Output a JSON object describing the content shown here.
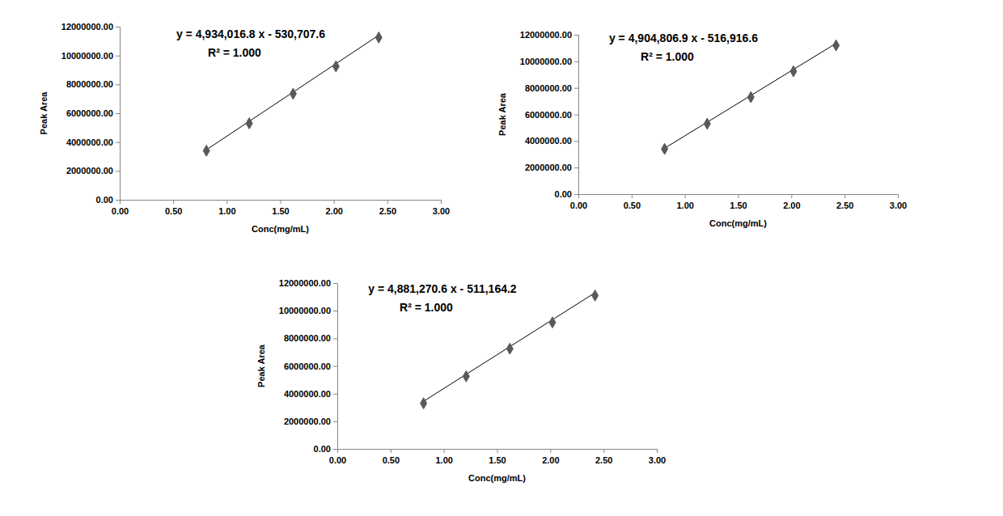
{
  "chart_data": [
    {
      "type": "scatter",
      "x_label": "Conc(mg/mL)",
      "y_label": "Peak Area",
      "equation": "y = 4,934,016.8 x - 530,707.6",
      "r_squared_label": "R² = 1.000",
      "x": [
        0.81,
        1.21,
        1.62,
        2.02,
        2.42
      ],
      "values": [
        3400000,
        5300000,
        7350000,
        9250000,
        11250000
      ],
      "trendline": {
        "slope": 4934016.8,
        "intercept": -530707.6
      },
      "color": "#595959",
      "marker": "diamond",
      "xlim": [
        0,
        3
      ],
      "xticks": [
        {
          "value": 0,
          "label": "0.00"
        },
        {
          "value": 0.5,
          "label": "0.50"
        },
        {
          "value": 1,
          "label": "1.00"
        },
        {
          "value": 1.5,
          "label": "1.50"
        },
        {
          "value": 2,
          "label": "2.00"
        },
        {
          "value": 2.5,
          "label": "2.50"
        },
        {
          "value": 3,
          "label": "3.00"
        }
      ],
      "ylim": [
        0,
        12000000
      ],
      "yticks": [
        {
          "value": 0,
          "label": "0.00"
        },
        {
          "value": 2000000,
          "label": "2000000.00"
        },
        {
          "value": 4000000,
          "label": "4000000.00"
        },
        {
          "value": 6000000,
          "label": "6000000.00"
        },
        {
          "value": 8000000,
          "label": "8000000.00"
        },
        {
          "value": 10000000,
          "label": "10000000.00"
        },
        {
          "value": 12000000,
          "label": "12000000.00"
        }
      ],
      "grid": false
    },
    {
      "type": "scatter",
      "x_label": "Conc(mg/mL)",
      "y_label": "Peak Area",
      "equation": "y = 4,904,806.9 x - 516,916.6",
      "r_squared_label": "R² = 1.000",
      "x": [
        0.81,
        1.21,
        1.62,
        2.02,
        2.42
      ],
      "values": [
        3400000,
        5300000,
        7300000,
        9250000,
        11200000
      ],
      "trendline": {
        "slope": 4904806.9,
        "intercept": -516916.6
      },
      "color": "#595959",
      "marker": "diamond",
      "xlim": [
        0,
        3
      ],
      "xticks": [
        {
          "value": 0,
          "label": "0.00"
        },
        {
          "value": 0.5,
          "label": "0.50"
        },
        {
          "value": 1,
          "label": "1.00"
        },
        {
          "value": 1.5,
          "label": "1.50"
        },
        {
          "value": 2,
          "label": "2.00"
        },
        {
          "value": 2.5,
          "label": "2.50"
        },
        {
          "value": 3,
          "label": "3.00"
        }
      ],
      "ylim": [
        0,
        12000000
      ],
      "yticks": [
        {
          "value": 0,
          "label": "0.00"
        },
        {
          "value": 2000000,
          "label": "2000000.00"
        },
        {
          "value": 4000000,
          "label": "4000000.00"
        },
        {
          "value": 6000000,
          "label": "6000000.00"
        },
        {
          "value": 8000000,
          "label": "8000000.00"
        },
        {
          "value": 10000000,
          "label": "10000000.00"
        },
        {
          "value": 12000000,
          "label": "12000000.00"
        }
      ],
      "grid": false
    },
    {
      "type": "scatter",
      "x_label": "Conc(mg/mL)",
      "y_label": "Peak Area",
      "equation": "y = 4,881,270.6 x - 511,164.2",
      "r_squared_label": "R² = 1.000",
      "x": [
        0.81,
        1.21,
        1.62,
        2.02,
        2.42
      ],
      "values": [
        3300000,
        5250000,
        7250000,
        9150000,
        11100000
      ],
      "trendline": {
        "slope": 4881270.6,
        "intercept": -511164.2
      },
      "color": "#595959",
      "marker": "diamond",
      "xlim": [
        0,
        3
      ],
      "xticks": [
        {
          "value": 0,
          "label": "0.00"
        },
        {
          "value": 0.5,
          "label": "0.50"
        },
        {
          "value": 1,
          "label": "1.00"
        },
        {
          "value": 1.5,
          "label": "1.50"
        },
        {
          "value": 2,
          "label": "2.00"
        },
        {
          "value": 2.5,
          "label": "2.50"
        },
        {
          "value": 3,
          "label": "3.00"
        }
      ],
      "ylim": [
        0,
        12000000
      ],
      "yticks": [
        {
          "value": 0,
          "label": "0.00"
        },
        {
          "value": 2000000,
          "label": "2000000.00"
        },
        {
          "value": 4000000,
          "label": "4000000.00"
        },
        {
          "value": 6000000,
          "label": "6000000.00"
        },
        {
          "value": 8000000,
          "label": "8000000.00"
        },
        {
          "value": 10000000,
          "label": "10000000.00"
        },
        {
          "value": 12000000,
          "label": "12000000.00"
        }
      ],
      "grid": false
    }
  ]
}
